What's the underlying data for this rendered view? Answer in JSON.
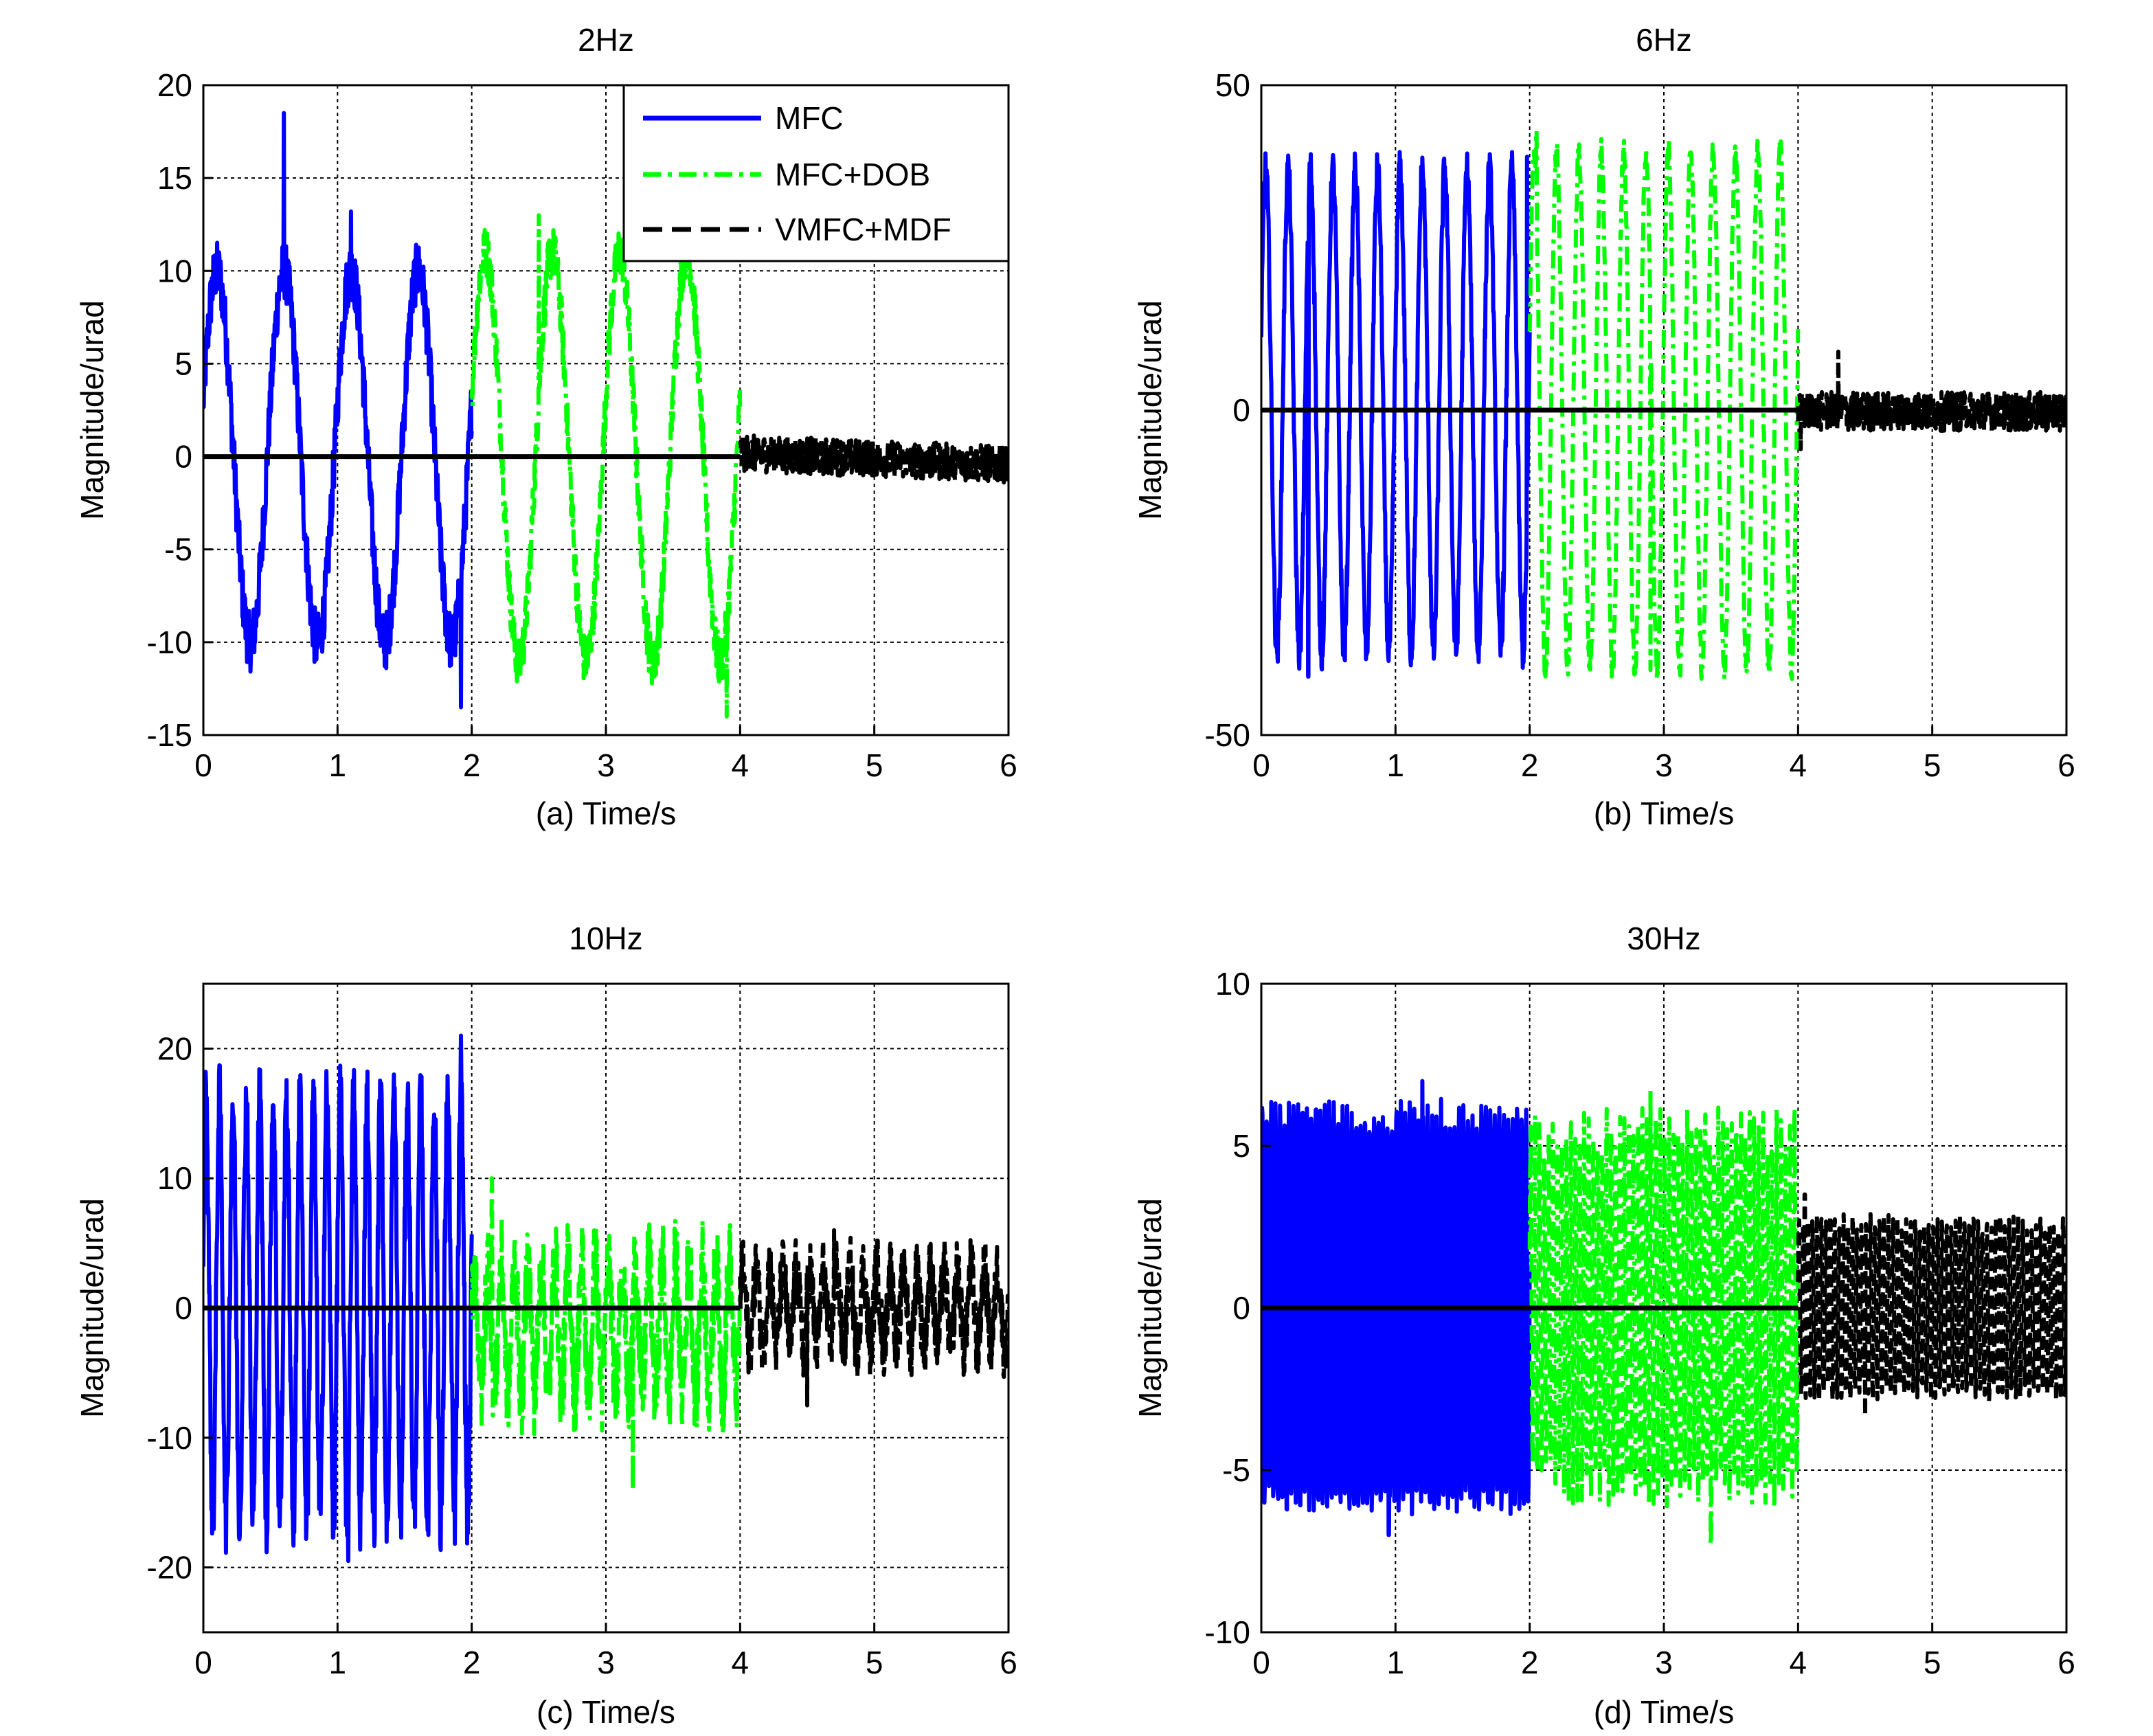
{
  "figure": {
    "legend": [
      {
        "label": "MFC",
        "color": "#0000ff",
        "style": "solid"
      },
      {
        "label": "MFC+DOB",
        "color": "#00ff00",
        "style": "dashdot"
      },
      {
        "label": "VMFC+MDF",
        "color": "#000000",
        "style": "dashed"
      }
    ]
  },
  "chart_data": [
    {
      "type": "line",
      "title": "2Hz",
      "xlabel": "(a) Time/s",
      "ylabel": "Magnitude/urad",
      "xlim": [
        0,
        6
      ],
      "ylim": [
        -15,
        20
      ],
      "xticks": [
        0,
        1,
        2,
        3,
        4,
        5,
        6
      ],
      "yticks": [
        -15,
        -10,
        -5,
        0,
        5,
        10,
        15,
        20
      ],
      "grid": true,
      "legend_position": "top-right",
      "series": [
        {
          "name": "MFC",
          "t_range": [
            0,
            2
          ],
          "freq_hz": 2,
          "amplitude": 10,
          "noise": 1.6,
          "peaks": [
            [
              0.6,
              18.5
            ],
            [
              1.1,
              13.2
            ],
            [
              1.92,
              -13.5
            ]
          ]
        },
        {
          "name": "MFC+DOB",
          "t_range": [
            2,
            4
          ],
          "freq_hz": 2,
          "amplitude": 11,
          "noise": 1.4,
          "peaks": [
            [
              2.5,
              13.0
            ],
            [
              3.9,
              -14.0
            ]
          ]
        },
        {
          "name": "VMFC+MDF",
          "t_range": [
            4,
            6
          ],
          "freq_hz": 0,
          "amplitude": 0.3,
          "noise": 1.0,
          "offset": 0.1,
          "trend": -0.6
        }
      ]
    },
    {
      "type": "line",
      "title": "6Hz",
      "xlabel": "(b) Time/s",
      "ylabel": "Magnitude/urad",
      "xlim": [
        0,
        6
      ],
      "ylim": [
        -50,
        50
      ],
      "xticks": [
        0,
        1,
        2,
        3,
        4,
        5,
        6
      ],
      "yticks": [
        -50,
        0,
        50
      ],
      "grid": true,
      "series": [
        {
          "name": "MFC",
          "t_range": [
            0,
            2
          ],
          "freq_hz": 6,
          "amplitude": 37,
          "noise": 3,
          "peaks": [
            [
              0.35,
              -41.0
            ],
            [
              1.98,
              39.0
            ]
          ]
        },
        {
          "name": "MFC+DOB",
          "t_range": [
            2,
            4
          ],
          "freq_hz": 6,
          "amplitude": 40,
          "noise": 2,
          "peaks": [
            [
              2.05,
              43.0
            ],
            [
              2.9,
              -40.0
            ]
          ]
        },
        {
          "name": "VMFC+MDF",
          "t_range": [
            4,
            6
          ],
          "freq_hz": 0,
          "amplitude": 1,
          "noise": 3,
          "offset": -0.5,
          "peaks": [
            [
              4.3,
              9.0
            ],
            [
              4.02,
              -6.0
            ]
          ]
        }
      ]
    },
    {
      "type": "line",
      "title": "10Hz",
      "xlabel": "(c) Time/s",
      "ylabel": "Magnitude/urad",
      "xlim": [
        0,
        6
      ],
      "ylim": [
        -25,
        25
      ],
      "xticks": [
        0,
        1,
        2,
        3,
        4,
        5,
        6
      ],
      "yticks": [
        -20,
        -10,
        0,
        10,
        20
      ],
      "grid": true,
      "series": [
        {
          "name": "MFC",
          "t_range": [
            0,
            2
          ],
          "freq_hz": 10,
          "amplitude": 16,
          "noise": 3,
          "peaks": [
            [
              1.92,
              21.0
            ],
            [
              1.08,
              -19.5
            ]
          ]
        },
        {
          "name": "MFC+DOB",
          "t_range": [
            2,
            4
          ],
          "freq_hz": 10,
          "amplitude": 5,
          "noise": 3.5,
          "offset": -1.5,
          "peaks": [
            [
              2.15,
              10.0
            ],
            [
              3.2,
              -14.0
            ]
          ]
        },
        {
          "name": "VMFC+MDF",
          "t_range": [
            4,
            6
          ],
          "freq_hz": 10,
          "amplitude": 3,
          "noise": 2.5,
          "peaks": [
            [
              4.7,
              6.0
            ],
            [
              4.5,
              -7.5
            ]
          ]
        }
      ]
    },
    {
      "type": "line",
      "title": "30Hz",
      "xlabel": "(d) Time/s",
      "ylabel": "Magnitude/urad",
      "xlim": [
        0,
        6
      ],
      "ylim": [
        -10,
        10
      ],
      "xticks": [
        0,
        1,
        2,
        3,
        4,
        5,
        6
      ],
      "yticks": [
        -10,
        -5,
        0,
        5,
        10
      ],
      "grid": true,
      "series": [
        {
          "name": "MFC",
          "t_range": [
            0,
            2
          ],
          "freq_hz": 30,
          "amplitude": 6,
          "noise": 0.5,
          "peaks": [
            [
              1.2,
              7.0
            ],
            [
              0.95,
              -7.0
            ]
          ]
        },
        {
          "name": "MFC+DOB",
          "t_range": [
            2,
            4
          ],
          "freq_hz": 30,
          "amplitude": 5.5,
          "noise": 0.8,
          "peaks": [
            [
              2.9,
              6.7
            ],
            [
              3.35,
              -7.3
            ]
          ]
        },
        {
          "name": "VMFC+MDF",
          "t_range": [
            4,
            6
          ],
          "freq_hz": 30,
          "amplitude": 2.6,
          "noise": 0.3,
          "peaks": [
            [
              4.05,
              3.5
            ],
            [
              4.5,
              -3.3
            ]
          ]
        }
      ]
    }
  ]
}
